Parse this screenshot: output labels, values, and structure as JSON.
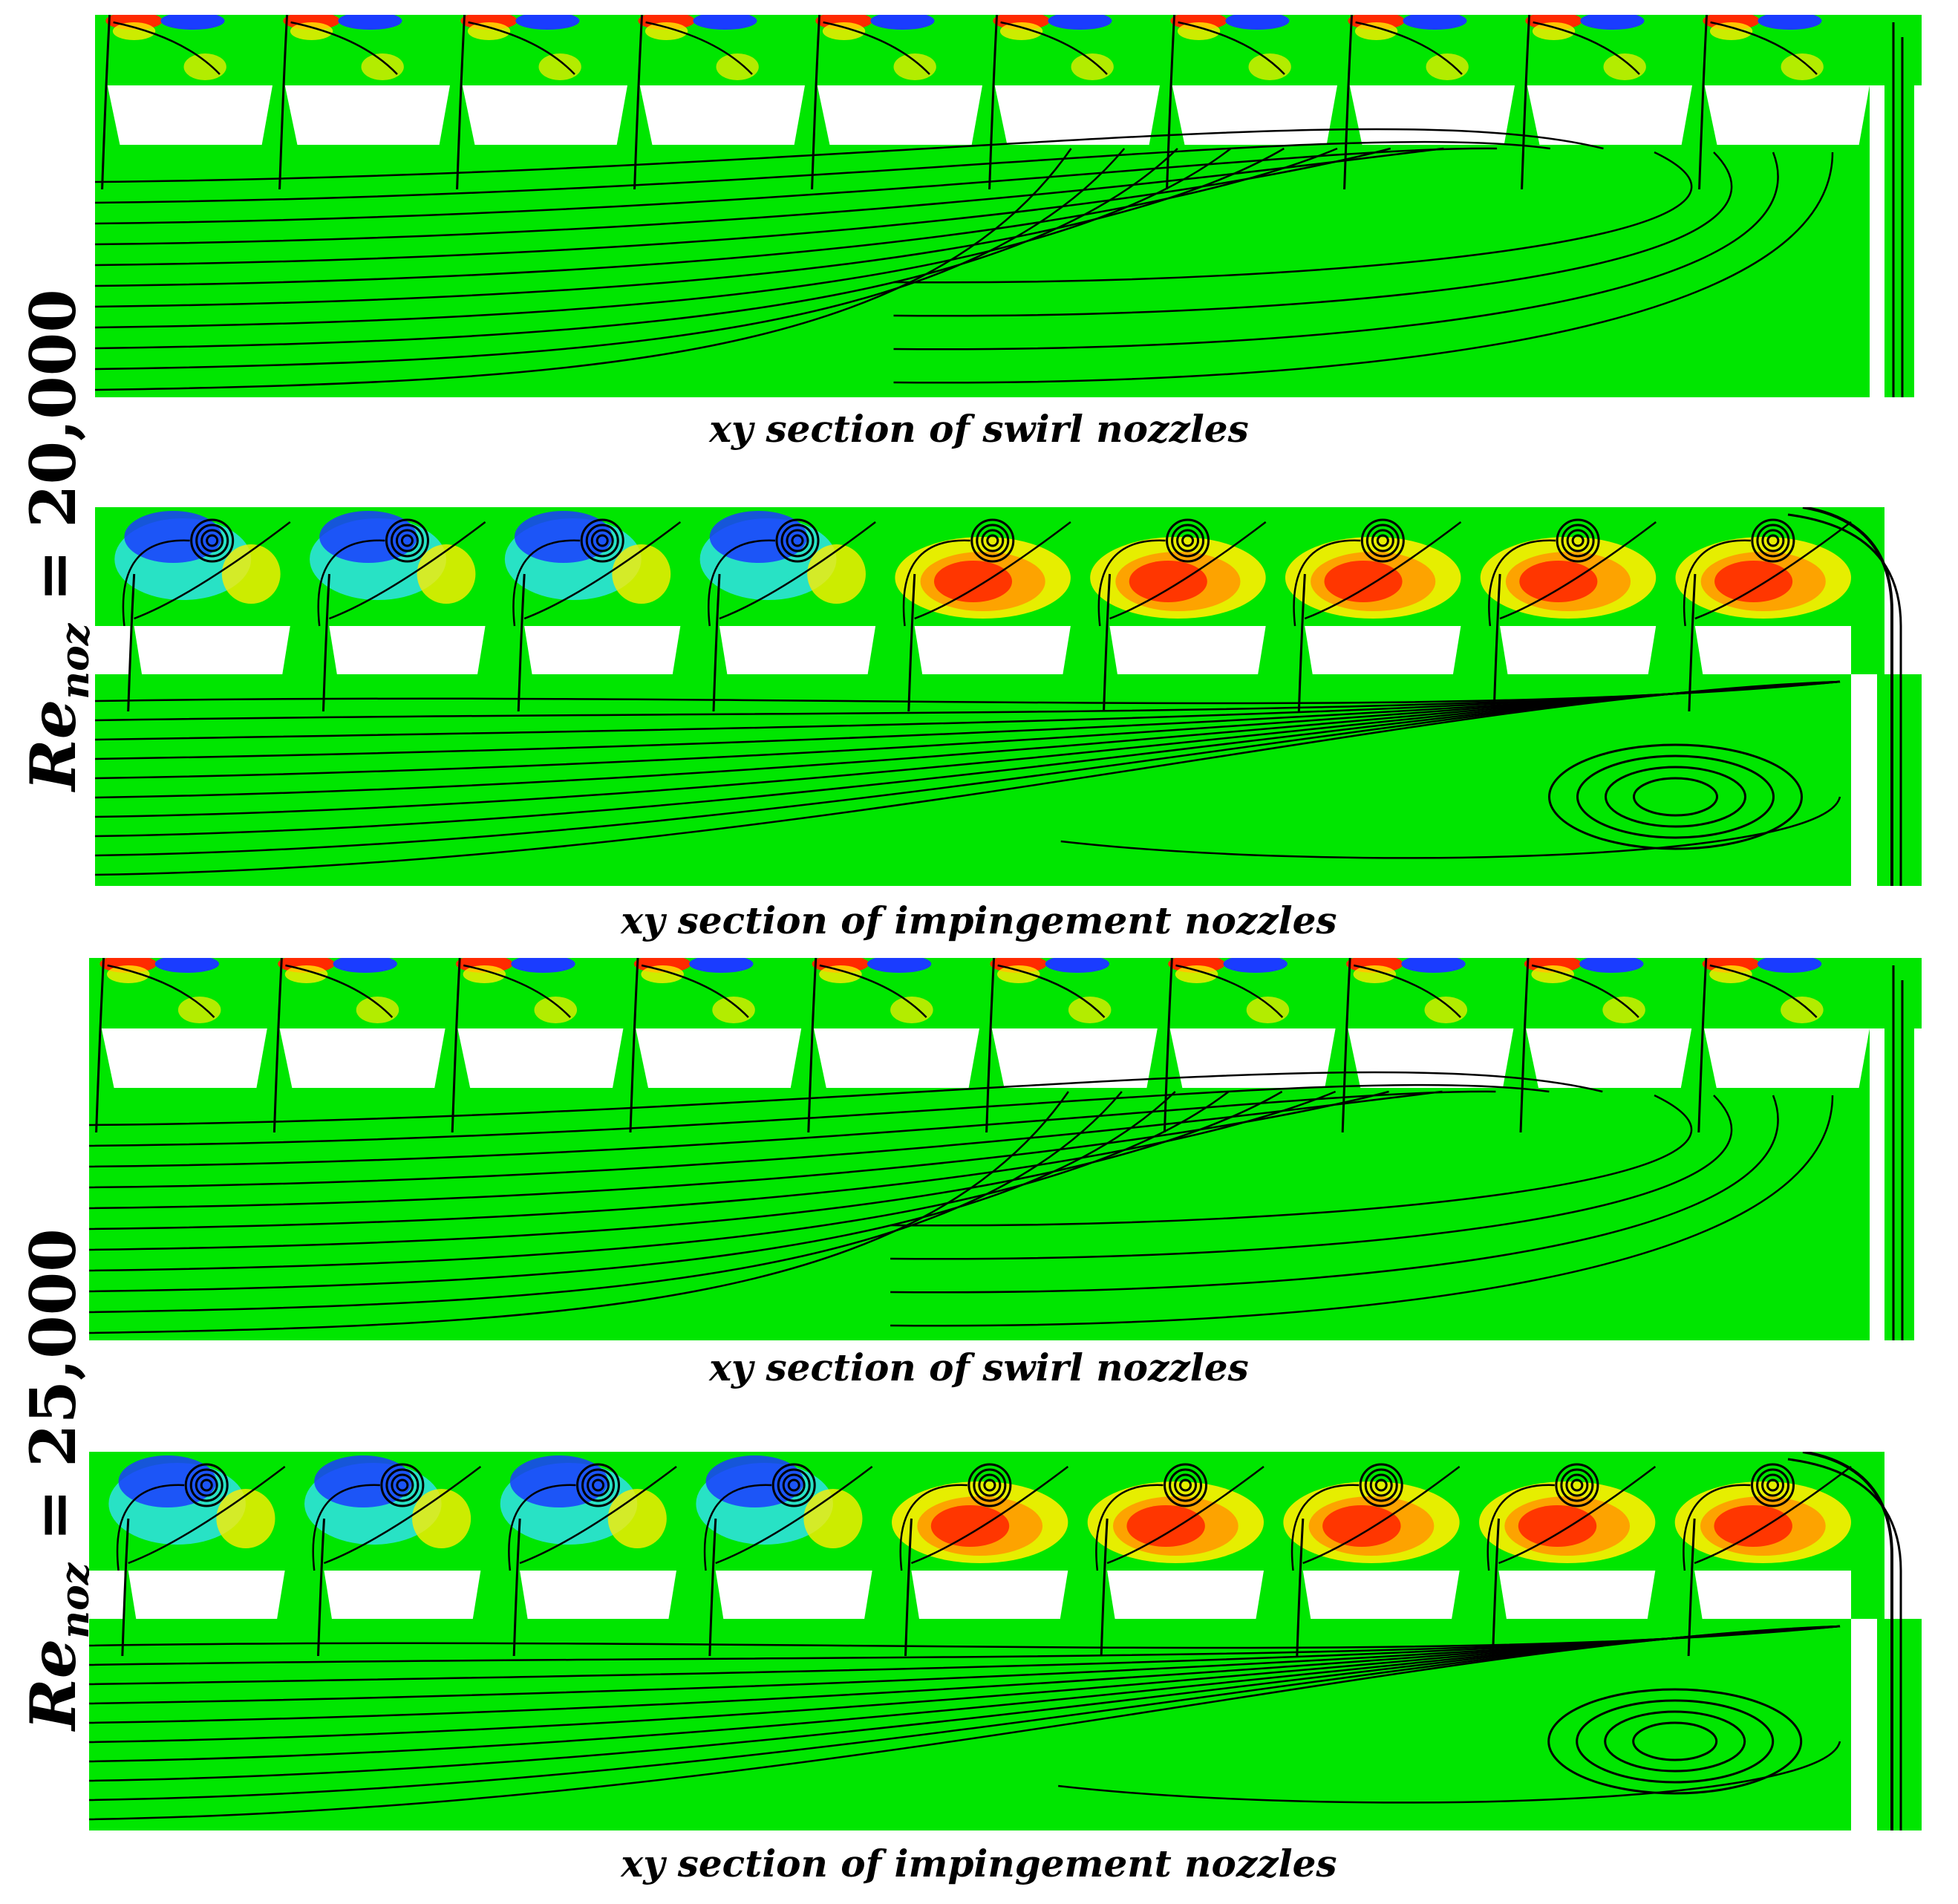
{
  "labels": {
    "re_symbol": "Re",
    "re_subscript": "noz",
    "re_20000": "= 20,000",
    "re_25000": "= 25,000"
  },
  "panels": [
    {
      "caption": "xy section of swirl nozzles",
      "kind": "swirl"
    },
    {
      "caption": "xy section of impingement nozzles",
      "kind": "impingement"
    },
    {
      "caption": "xy section of swirl nozzles",
      "kind": "swirl"
    },
    {
      "caption": "xy section of impingement nozzles",
      "kind": "impingement"
    }
  ],
  "colors": {
    "field": "#00e600",
    "hot": "#ff2a00",
    "warm": "#ffee00",
    "orange": "#ff9a00",
    "cold": "#1a3cff",
    "cyan": "#2fe0e8",
    "solid": "#ffffff",
    "streamline": "#000000"
  }
}
